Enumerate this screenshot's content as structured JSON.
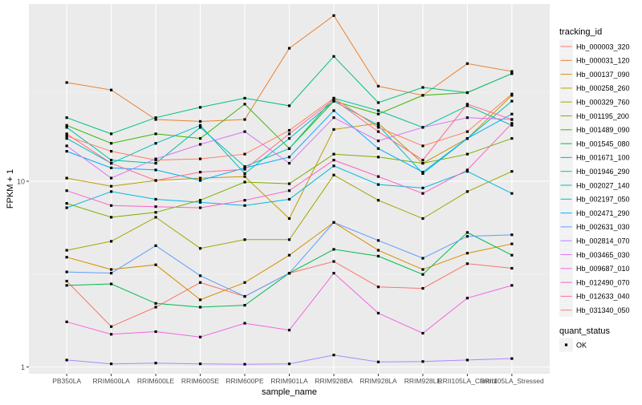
{
  "chart_data": {
    "type": "line",
    "xlabel": "sample_name",
    "ylabel": "FPKM + 1",
    "y_scale": "log10",
    "ylim": [
      0.92,
      90
    ],
    "yticks": [
      1,
      10
    ],
    "grid": true,
    "legend_placement": "right",
    "categories": [
      "PB350LA",
      "RRIM600LA",
      "RRIM600LE",
      "RRIM600SE",
      "RRIM600PE",
      "RRIM901LA",
      "RRIM928BA",
      "RRIM928LA",
      "RRIM928LE",
      "RRII105LA_Control",
      "RRII105LA_Stressed"
    ],
    "series": [
      {
        "name": "Hb_000003_320",
        "color": "#F8766D",
        "values": [
          2.9,
          1.65,
          2.1,
          2.85,
          2.4,
          3.2,
          3.7,
          2.7,
          2.65,
          3.6,
          3.4
        ]
      },
      {
        "name": "Hb_000031_120",
        "color": "#EA8331",
        "values": [
          34,
          31,
          21.5,
          21,
          21.5,
          52,
          78,
          32.5,
          29,
          43,
          39
        ]
      },
      {
        "name": "Hb_000137_090",
        "color": "#D89000",
        "values": [
          3.9,
          3.35,
          3.55,
          2.3,
          2.85,
          4.0,
          6.0,
          4.25,
          3.35,
          4.1,
          4.6
        ]
      },
      {
        "name": "Hb_000258_260",
        "color": "#C09B00",
        "values": [
          10.4,
          9.4,
          10.1,
          10.4,
          10.6,
          6.3,
          19,
          20.5,
          12.5,
          17,
          29
        ]
      },
      {
        "name": "Hb_000329_760",
        "color": "#A3A500",
        "values": [
          4.25,
          4.75,
          6.4,
          4.35,
          4.85,
          4.85,
          10.8,
          7.9,
          6.3,
          8.8,
          11.3
        ]
      },
      {
        "name": "Hb_001195_200",
        "color": "#7CAE00",
        "values": [
          7.6,
          6.4,
          6.8,
          7.9,
          9.9,
          9.7,
          14,
          13.5,
          12.5,
          14,
          17
        ]
      },
      {
        "name": "Hb_001489_090",
        "color": "#39B600",
        "values": [
          20,
          16,
          18,
          17,
          26,
          15,
          27,
          23,
          29,
          30,
          38
        ]
      },
      {
        "name": "Hb_001545_080",
        "color": "#00BB4E",
        "values": [
          2.75,
          2.8,
          2.2,
          2.1,
          2.15,
          3.2,
          4.3,
          3.95,
          3.15,
          5.3,
          4.0
        ]
      },
      {
        "name": "Hb_001671_100",
        "color": "#00BF7D",
        "values": [
          22,
          18,
          22,
          25,
          28,
          25.5,
          47,
          26.5,
          32,
          30,
          38
        ]
      },
      {
        "name": "Hb_001946_290",
        "color": "#00C1A3",
        "values": [
          19.5,
          13,
          12.5,
          19.5,
          12,
          15,
          28,
          24,
          19.5,
          25.5,
          20
        ]
      },
      {
        "name": "Hb_002027_140",
        "color": "#00BFC4",
        "values": [
          17,
          12.5,
          16,
          20,
          11,
          17,
          27,
          20,
          11,
          17,
          27
        ]
      },
      {
        "name": "Hb_002197_050",
        "color": "#00B9E3",
        "values": [
          7.2,
          8.8,
          8,
          7.7,
          7.4,
          8,
          12.1,
          9.6,
          9.2,
          11.3,
          8.6
        ]
      },
      {
        "name": "Hb_002471_290",
        "color": "#00ADFA",
        "values": [
          14.5,
          11.8,
          11.5,
          10.1,
          11.8,
          13.5,
          24,
          15,
          11.2,
          17,
          23
        ]
      },
      {
        "name": "Hb_002631_030",
        "color": "#619CFF",
        "values": [
          3.25,
          3.2,
          4.5,
          3.1,
          2.4,
          3.2,
          6.0,
          4.8,
          3.85,
          5.05,
          5.15
        ]
      },
      {
        "name": "Hb_002814_070",
        "color": "#AE87FF",
        "values": [
          1.09,
          1.04,
          1.05,
          1.04,
          1.035,
          1.04,
          1.16,
          1.065,
          1.07,
          1.09,
          1.11
        ]
      },
      {
        "name": "Hb_003465_030",
        "color": "#DB72FB",
        "values": [
          15.5,
          10.4,
          13.2,
          15.8,
          18.5,
          12.5,
          22,
          16.5,
          19.5,
          22,
          21.5
        ]
      },
      {
        "name": "Hb_009687_010",
        "color": "#F564E3",
        "values": [
          1.75,
          1.5,
          1.55,
          1.45,
          1.72,
          1.58,
          3.2,
          1.95,
          1.52,
          2.35,
          2.75
        ]
      },
      {
        "name": "Hb_012490_070",
        "color": "#FF61C3",
        "values": [
          8.9,
          7.4,
          7.3,
          7.2,
          7.9,
          8.9,
          13,
          10.6,
          8.6,
          11.5,
          20.5
        ]
      },
      {
        "name": "Hb_012633_040",
        "color": "#FF6C91",
        "values": [
          18,
          12.5,
          10.1,
          11.2,
          11.6,
          18,
          27.5,
          18.5,
          13,
          26,
          21.5
        ]
      },
      {
        "name": "Hb_031340_050",
        "color": "#FF7F5E",
        "values": [
          17.5,
          14.5,
          13,
          13.2,
          14,
          18.8,
          28,
          19.5,
          15.5,
          18.5,
          29.5
        ]
      }
    ],
    "legend": {
      "title": "tracking_id",
      "shape_title": "quant_status",
      "shape_entries": [
        "OK"
      ]
    }
  }
}
